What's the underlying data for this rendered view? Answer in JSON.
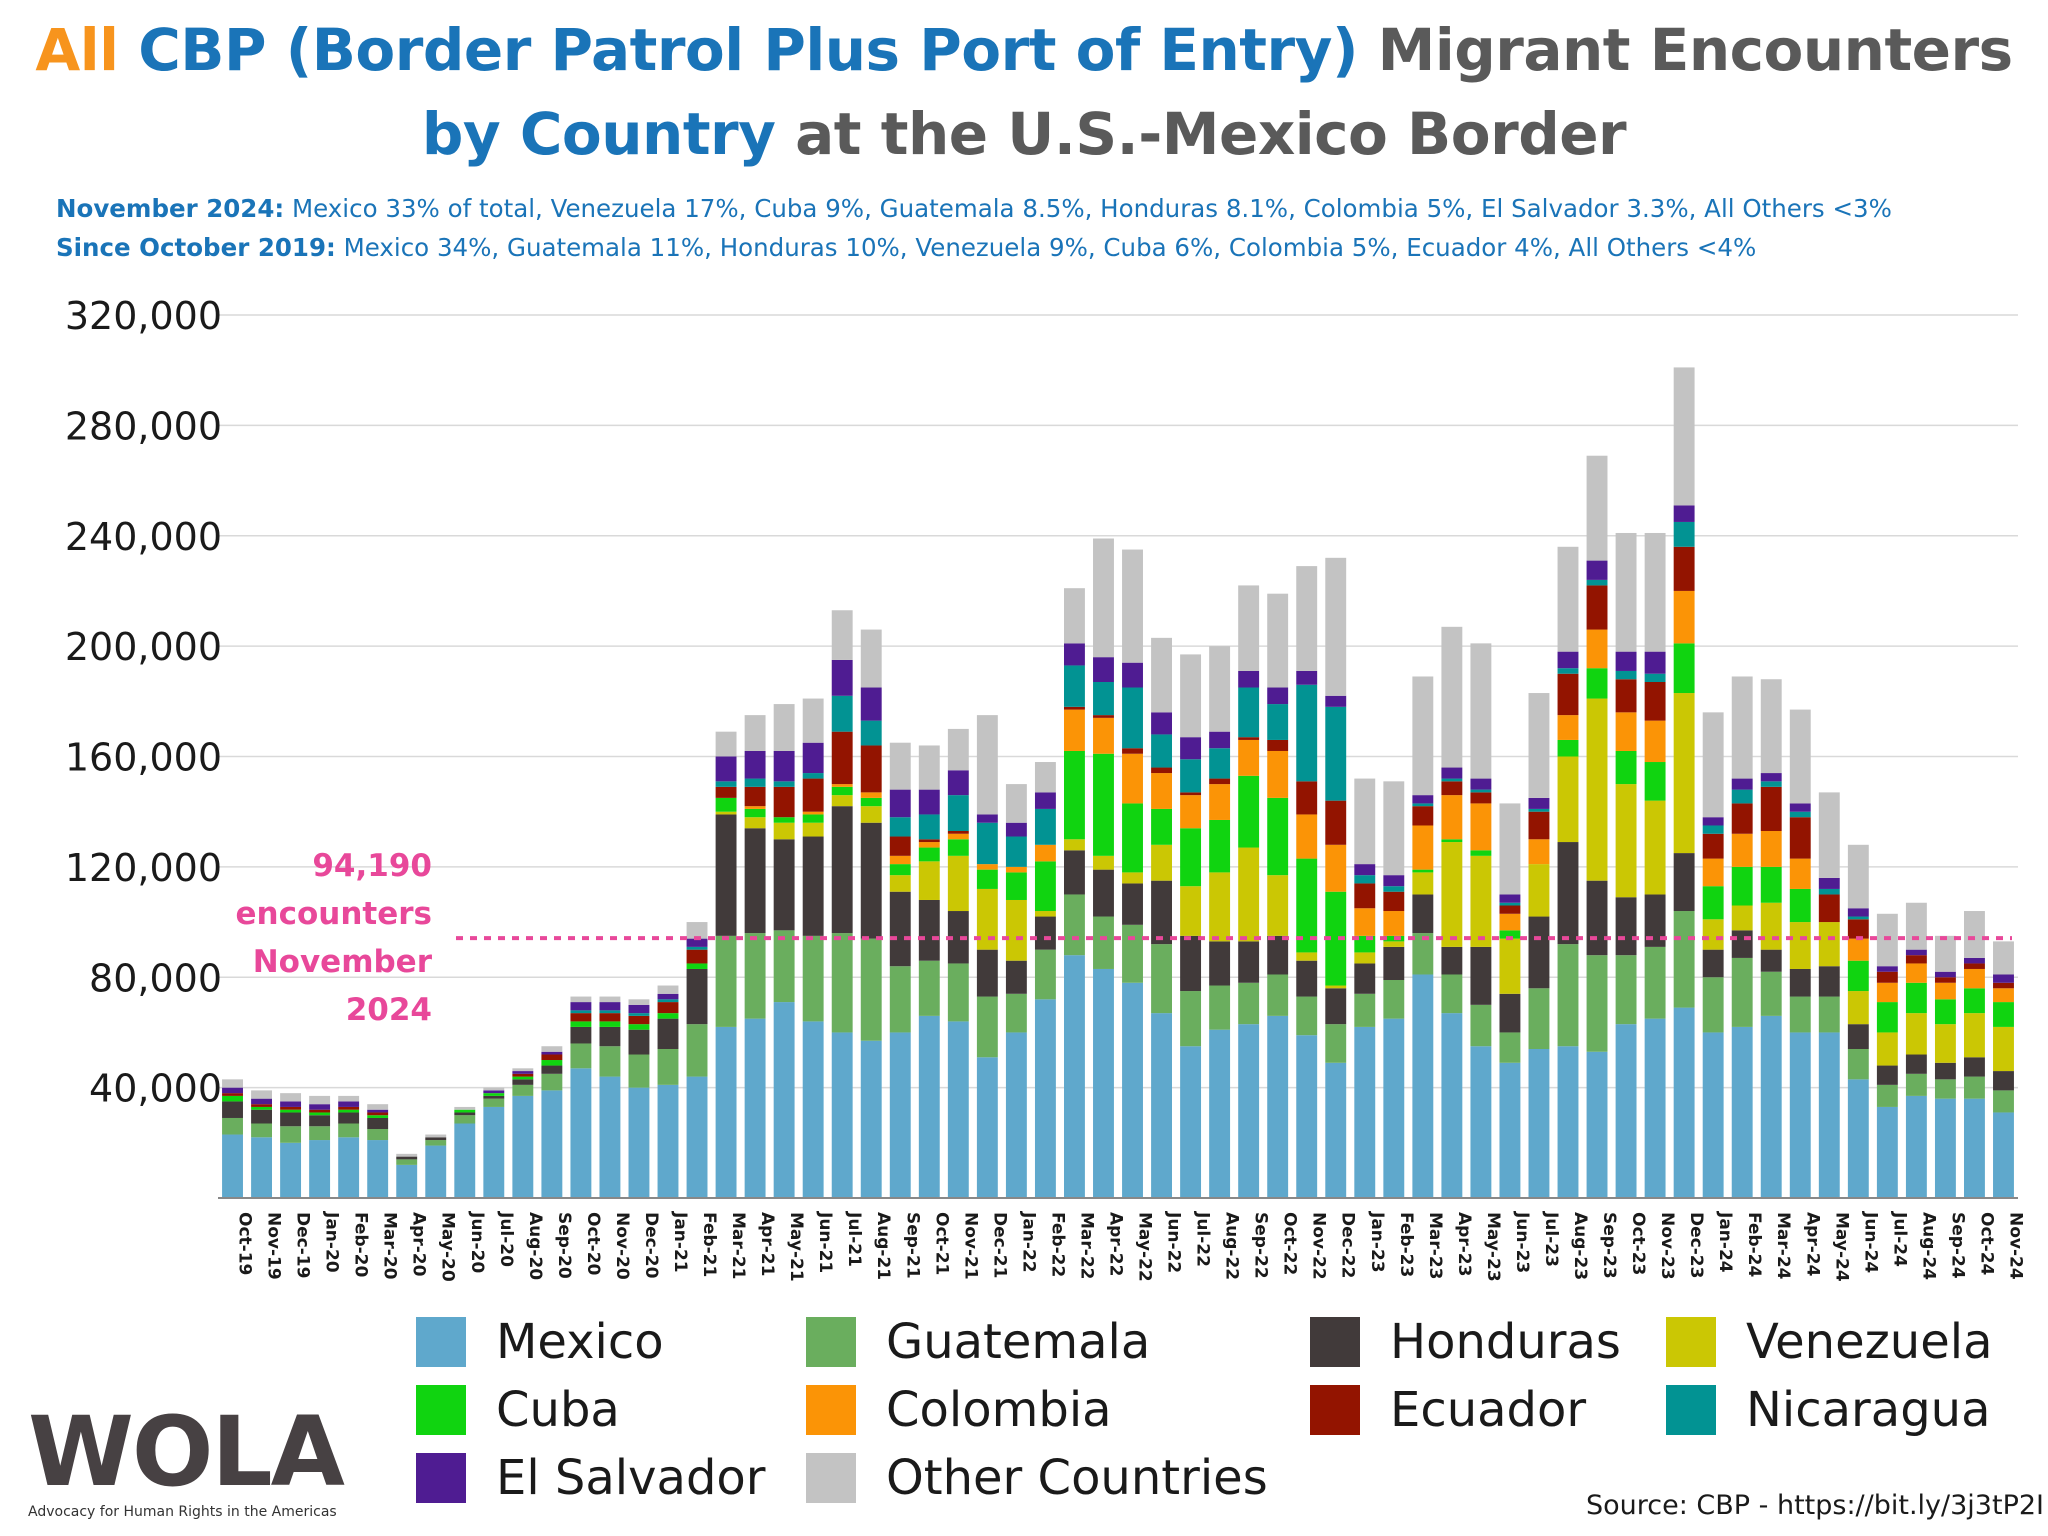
{
  "title": {
    "line1_part1": "All",
    "line1_part2": "CBP (Border Patrol Plus Port of Entry)",
    "line1_part3": "Migrant Encounters",
    "line2_part1": "by Country",
    "line2_part2": "at the U.S.-Mexico Border"
  },
  "subtitles": {
    "line1_bold": "November 2024:",
    "line1_text": "Mexico 33% of total, Venezuela 17%, Cuba 9%, Guatemala 8.5%, Honduras 8.1%, Colombia 5%, El Salvador 3.3%, All Others <3%",
    "line2_bold": "Since October 2019:",
    "line2_text": "Mexico 34%, Guatemala 11%, Honduras 10%, Venezuela 9%, Cuba 6%, Colombia 5%, Ecuador 4%, All Others <4%"
  },
  "callout": {
    "line1": "94,190",
    "line2": "encounters",
    "line3": "November",
    "line4": "2024"
  },
  "source": "Source: CBP - https://bit.ly/3j3tP2I",
  "logo": {
    "text": "WOLA",
    "tagline": "Advocacy for Human Rights in the Americas"
  },
  "colors": {
    "Mexico": "#5fa8cc",
    "Guatemala": "#6aae5e",
    "Honduras": "#413a3a",
    "Venezuela": "#cbc704",
    "Cuba": "#10d410",
    "Colombia": "#fb9406",
    "Ecuador": "#931400",
    "Nicaragua": "#029393",
    "El Salvador": "#4f1c92",
    "Other Countries": "#c3c3c3",
    "reference_line": "#e8489a"
  },
  "chart_data": {
    "type": "bar",
    "stacked": true,
    "ylim": [
      0,
      320000
    ],
    "yticks": [
      40000,
      80000,
      120000,
      160000,
      200000,
      240000,
      280000,
      320000
    ],
    "ytick_labels": [
      "40,000",
      "80,000",
      "120,000",
      "160,000",
      "200,000",
      "240,000",
      "280,000",
      "320,000"
    ],
    "grid": true,
    "legend_position": "bottom",
    "reference_line": {
      "value": 94190
    },
    "categories": [
      "Oct-19",
      "Nov-19",
      "Dec-19",
      "Jan-20",
      "Feb-20",
      "Mar-20",
      "Apr-20",
      "May-20",
      "Jun-20",
      "Jul-20",
      "Aug-20",
      "Sep-20",
      "Oct-20",
      "Nov-20",
      "Dec-20",
      "Jan-21",
      "Feb-21",
      "Mar-21",
      "Apr-21",
      "May-21",
      "Jun-21",
      "Jul-21",
      "Aug-21",
      "Sep-21",
      "Oct-21",
      "Nov-21",
      "Dec-21",
      "Jan-22",
      "Feb-22",
      "Mar-22",
      "Apr-22",
      "May-22",
      "Jun-22",
      "Jul-22",
      "Aug-22",
      "Sep-22",
      "Oct-22",
      "Nov-22",
      "Dec-22",
      "Jan-23",
      "Feb-23",
      "Mar-23",
      "Apr-23",
      "May-23",
      "Jun-23",
      "Jul-23",
      "Aug-23",
      "Sep-23",
      "Oct-23",
      "Nov-23",
      "Dec-23",
      "Jan-24",
      "Feb-24",
      "Mar-24",
      "Apr-24",
      "May-24",
      "Jun-24",
      "Jul-24",
      "Aug-24",
      "Sep-24",
      "Oct-24",
      "Nov-24"
    ],
    "series": [
      {
        "name": "Mexico",
        "values": [
          23000,
          22000,
          20000,
          21000,
          22000,
          21000,
          12000,
          19000,
          27000,
          33000,
          37000,
          39000,
          47000,
          44000,
          40000,
          41000,
          44000,
          62000,
          65000,
          71000,
          64000,
          60000,
          57000,
          60000,
          66000,
          64000,
          51000,
          60000,
          72000,
          88000,
          83000,
          78000,
          67000,
          55000,
          61000,
          63000,
          66000,
          59000,
          49000,
          62000,
          65000,
          81000,
          67000,
          55000,
          49000,
          54000,
          55000,
          53000,
          63000,
          65000,
          69000,
          60000,
          62000,
          66000,
          60000,
          60000,
          43000,
          33000,
          37000,
          36000,
          36000,
          31000
        ]
      },
      {
        "name": "Guatemala",
        "values": [
          6000,
          5000,
          6000,
          5000,
          5000,
          4000,
          2000,
          2000,
          3000,
          3000,
          4000,
          6000,
          9000,
          11000,
          12000,
          13000,
          19000,
          33000,
          31000,
          26000,
          31000,
          36000,
          37000,
          24000,
          20000,
          21000,
          22000,
          14000,
          18000,
          22000,
          19000,
          21000,
          25000,
          20000,
          16000,
          15000,
          15000,
          14000,
          14000,
          12000,
          14000,
          15000,
          14000,
          15000,
          11000,
          22000,
          37000,
          35000,
          25000,
          26000,
          35000,
          20000,
          25000,
          16000,
          13000,
          13000,
          11000,
          8000,
          8000,
          7000,
          8000,
          8000
        ]
      },
      {
        "name": "Honduras",
        "values": [
          6000,
          5000,
          5000,
          4000,
          4000,
          4000,
          1000,
          1000,
          1000,
          1000,
          2000,
          3000,
          6000,
          7000,
          9000,
          11000,
          20000,
          44000,
          38000,
          33000,
          36000,
          46000,
          42000,
          27000,
          22000,
          19000,
          17000,
          12000,
          12000,
          16000,
          17000,
          15000,
          23000,
          20000,
          16000,
          15000,
          14000,
          13000,
          13000,
          11000,
          12000,
          14000,
          10000,
          21000,
          14000,
          26000,
          37000,
          27000,
          21000,
          19000,
          21000,
          10000,
          10000,
          8000,
          10000,
          11000,
          9000,
          7000,
          7000,
          6000,
          7000,
          7000
        ]
      },
      {
        "name": "Venezuela",
        "values": [
          0,
          0,
          0,
          0,
          0,
          0,
          0,
          0,
          0,
          0,
          0,
          0,
          0,
          0,
          0,
          0,
          0,
          1000,
          4000,
          6000,
          5000,
          4000,
          6000,
          6000,
          14000,
          20000,
          22000,
          22000,
          2000,
          4000,
          5000,
          4000,
          13000,
          18000,
          25000,
          34000,
          22000,
          3000,
          1000,
          4000,
          2000,
          8000,
          38000,
          33000,
          20000,
          19000,
          31000,
          66000,
          41000,
          34000,
          58000,
          11000,
          9000,
          17000,
          17000,
          16000,
          12000,
          12000,
          15000,
          14000,
          16000,
          16000
        ]
      },
      {
        "name": "Cuba",
        "values": [
          2000,
          1000,
          1000,
          1000,
          1000,
          1000,
          0,
          0,
          1000,
          1000,
          1000,
          2000,
          2000,
          2000,
          2000,
          2000,
          2000,
          5000,
          3000,
          2000,
          3000,
          3000,
          3000,
          4000,
          5000,
          6000,
          7000,
          10000,
          18000,
          32000,
          37000,
          25000,
          13000,
          21000,
          19000,
          26000,
          28000,
          34000,
          34000,
          6000,
          2000,
          1000,
          1000,
          2000,
          3000,
          0,
          6000,
          11000,
          12000,
          14000,
          18000,
          12000,
          14000,
          13000,
          12000,
          0,
          11000,
          11000,
          11000,
          9000,
          9000,
          9000
        ]
      },
      {
        "name": "Colombia",
        "values": [
          0,
          0,
          0,
          0,
          0,
          0,
          0,
          0,
          0,
          0,
          0,
          0,
          0,
          0,
          0,
          0,
          0,
          0,
          1000,
          0,
          1000,
          1000,
          2000,
          3000,
          2000,
          2000,
          2000,
          2000,
          6000,
          15000,
          13000,
          18000,
          13000,
          12000,
          13000,
          13000,
          17000,
          16000,
          17000,
          10000,
          9000,
          16000,
          16000,
          17000,
          6000,
          9000,
          9000,
          14000,
          14000,
          15000,
          19000,
          10000,
          12000,
          13000,
          11000,
          0,
          8000,
          7000,
          7000,
          6000,
          7000,
          5000
        ]
      },
      {
        "name": "Ecuador",
        "values": [
          1000,
          1000,
          1000,
          1000,
          1000,
          1000,
          0,
          0,
          0,
          0,
          1000,
          2000,
          3000,
          3000,
          3000,
          4000,
          5000,
          4000,
          7000,
          11000,
          12000,
          19000,
          17000,
          7000,
          1000,
          1000,
          0,
          0,
          0,
          1000,
          1000,
          2000,
          2000,
          1000,
          2000,
          1000,
          4000,
          12000,
          16000,
          9000,
          7000,
          7000,
          5000,
          4000,
          3000,
          10000,
          15000,
          16000,
          12000,
          14000,
          16000,
          9000,
          11000,
          16000,
          15000,
          10000,
          7000,
          4000,
          3000,
          2000,
          2000,
          2000
        ]
      },
      {
        "name": "Nicaragua",
        "values": [
          0,
          0,
          0,
          0,
          0,
          0,
          0,
          0,
          0,
          0,
          0,
          0,
          1000,
          1000,
          1000,
          1000,
          1000,
          2000,
          3000,
          2000,
          2000,
          13000,
          9000,
          7000,
          9000,
          13000,
          15000,
          11000,
          13000,
          15000,
          12000,
          22000,
          12000,
          12000,
          11000,
          18000,
          13000,
          35000,
          34000,
          3000,
          2000,
          1000,
          1000,
          1000,
          1000,
          1000,
          2000,
          2000,
          3000,
          3000,
          9000,
          3000,
          5000,
          2000,
          2000,
          2000,
          1000,
          0,
          0,
          0,
          0,
          0
        ]
      },
      {
        "name": "El Salvador",
        "values": [
          2000,
          2000,
          2000,
          2000,
          2000,
          1000,
          0,
          0,
          0,
          1000,
          1000,
          1000,
          3000,
          3000,
          3000,
          2000,
          3000,
          9000,
          10000,
          11000,
          11000,
          13000,
          12000,
          10000,
          9000,
          9000,
          3000,
          5000,
          6000,
          8000,
          9000,
          9000,
          8000,
          8000,
          6000,
          6000,
          6000,
          5000,
          4000,
          4000,
          4000,
          3000,
          4000,
          4000,
          3000,
          4000,
          6000,
          7000,
          7000,
          8000,
          6000,
          3000,
          4000,
          3000,
          3000,
          4000,
          3000,
          2000,
          2000,
          2000,
          2000,
          3000
        ]
      },
      {
        "name": "Other Countries",
        "values": [
          3000,
          3000,
          3000,
          3000,
          2000,
          2000,
          1000,
          1000,
          1000,
          1000,
          1000,
          2000,
          2000,
          2000,
          2000,
          3000,
          6000,
          9000,
          13000,
          17000,
          16000,
          18000,
          21000,
          17000,
          16000,
          15000,
          36000,
          14000,
          11000,
          20000,
          43000,
          41000,
          27000,
          30000,
          31000,
          31000,
          34000,
          38000,
          50000,
          31000,
          34000,
          43000,
          51000,
          49000,
          33000,
          38000,
          38000,
          38000,
          43000,
          43000,
          50000,
          38000,
          37000,
          34000,
          34000,
          31000,
          23000,
          19000,
          17000,
          13000,
          17000,
          12000
        ]
      }
    ]
  }
}
